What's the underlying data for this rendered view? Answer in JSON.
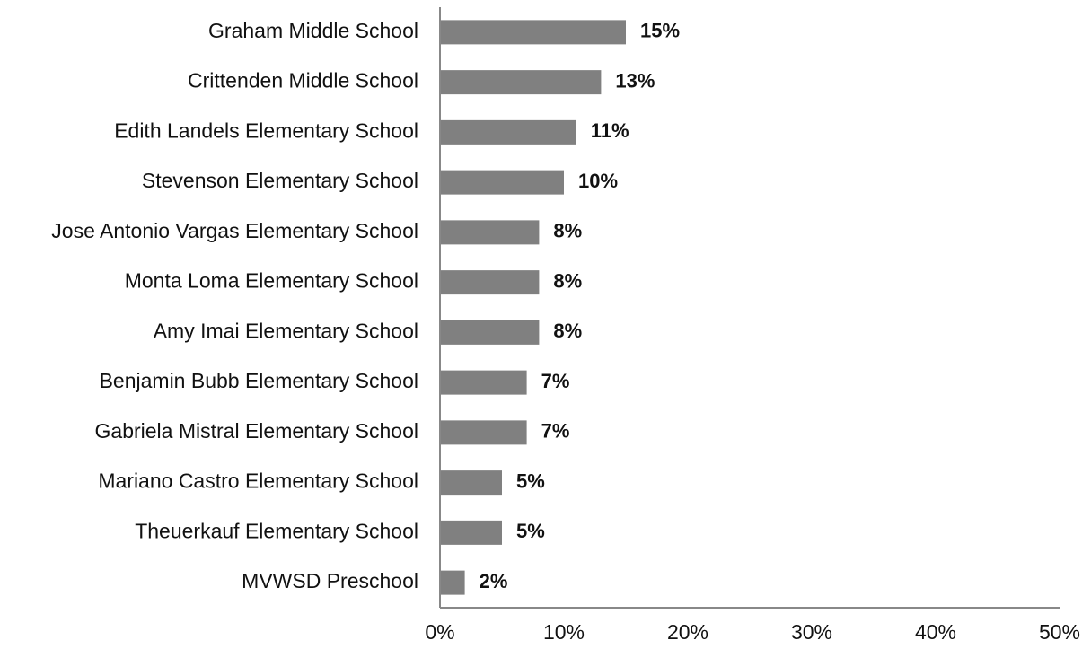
{
  "chart_data": {
    "type": "bar",
    "orientation": "horizontal",
    "categories": [
      "Graham Middle School",
      "Crittenden Middle School",
      "Edith Landels Elementary School",
      "Stevenson Elementary School",
      "Jose Antonio Vargas Elementary School",
      "Monta Loma Elementary School",
      "Amy Imai Elementary School",
      "Benjamin Bubb Elementary School",
      "Gabriela Mistral Elementary School",
      "Mariano Castro Elementary School",
      "Theuerkauf Elementary School",
      "MVWSD Preschool"
    ],
    "values": [
      15,
      13,
      11,
      10,
      8,
      8,
      8,
      7,
      7,
      5,
      5,
      2
    ],
    "data_labels": [
      "15%",
      "13%",
      "11%",
      "10%",
      "8%",
      "8%",
      "8%",
      "7%",
      "7%",
      "5%",
      "5%",
      "2%"
    ],
    "x_ticks": [
      "0%",
      "10%",
      "20%",
      "30%",
      "40%",
      "50%"
    ],
    "xlim": [
      0,
      50
    ],
    "bar_color": "#808080",
    "axis_color": "#888888",
    "grid": false,
    "legend": "none"
  }
}
